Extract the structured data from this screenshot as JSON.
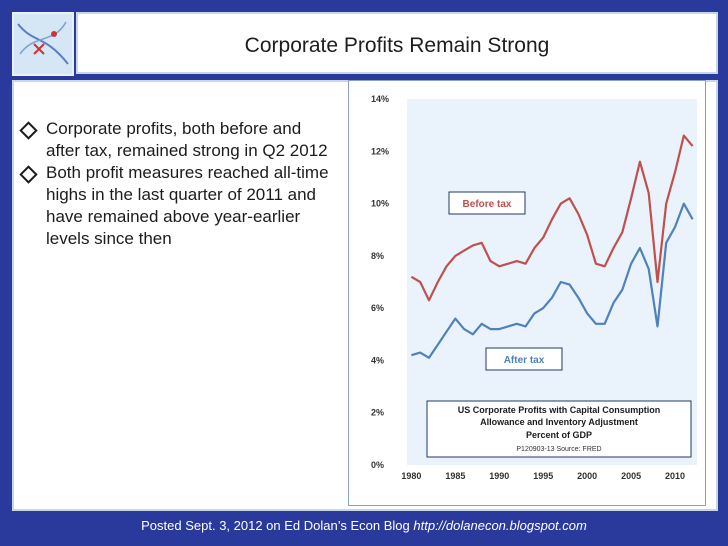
{
  "slide": {
    "title": "Corporate Profits Remain Strong",
    "bullets": [
      "Corporate profits, both before and after tax, remained strong in Q2 2012",
      "Both profit measures reached all-time highs in the last quarter of 2011 and have remained above year-earlier levels since then"
    ],
    "footer_text": "Posted Sept. 3, 2012 on Ed Dolan’s Econ Blog",
    "footer_url": "http://dolanecon.blogspot.com"
  },
  "chart_data": {
    "type": "line",
    "x": [
      1980,
      1981,
      1982,
      1983,
      1984,
      1985,
      1986,
      1987,
      1988,
      1989,
      1990,
      1991,
      1992,
      1993,
      1994,
      1995,
      1996,
      1997,
      1998,
      1999,
      2000,
      2001,
      2002,
      2003,
      2004,
      2005,
      2006,
      2007,
      2008,
      2009,
      2010,
      2011,
      2012
    ],
    "series": [
      {
        "name": "Before tax",
        "color": "#c0504d",
        "values": [
          7.2,
          7.0,
          6.3,
          7.0,
          7.6,
          8.0,
          8.2,
          8.4,
          8.5,
          7.8,
          7.6,
          7.7,
          7.8,
          7.7,
          8.3,
          8.7,
          9.4,
          10.0,
          10.2,
          9.6,
          8.8,
          7.7,
          7.6,
          8.3,
          8.9,
          10.2,
          11.6,
          10.4,
          7.0,
          10.0,
          11.2,
          12.6,
          12.2
        ]
      },
      {
        "name": "After tax",
        "color": "#4f81bd",
        "values": [
          4.2,
          4.3,
          4.1,
          4.6,
          5.1,
          5.6,
          5.2,
          5.0,
          5.4,
          5.2,
          5.2,
          5.3,
          5.4,
          5.3,
          5.8,
          6.0,
          6.4,
          7.0,
          6.9,
          6.4,
          5.8,
          5.4,
          5.4,
          6.2,
          6.7,
          7.7,
          8.3,
          7.5,
          5.3,
          8.5,
          9.1,
          10.0,
          9.4
        ]
      }
    ],
    "xticks": [
      "1980",
      "1985",
      "1990",
      "1995",
      "2000",
      "2005",
      "2010"
    ],
    "yticks": [
      "0%",
      "2%",
      "4%",
      "6%",
      "8%",
      "10%",
      "12%",
      "14%"
    ],
    "ylim": [
      0,
      14
    ],
    "xlim": [
      1979.5,
      2012.5
    ],
    "grid": false,
    "annotations": {
      "before_tax": "Before tax",
      "after_tax": "After tax",
      "box_line1": "US Corporate Profits with Capital Consumption",
      "box_line2": "Allowance and Inventory Adjustment",
      "box_line3": "Percent of GDP",
      "source": "P120903-13 Source: FRED"
    }
  }
}
